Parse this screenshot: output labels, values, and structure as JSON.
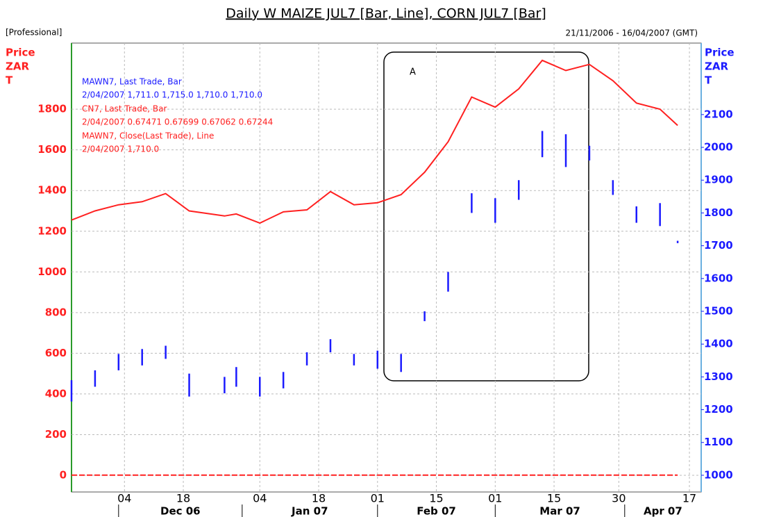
{
  "chart_data": {
    "type": "ohlc-line",
    "title": "Daily W MAIZE JUL7 [Bar, Line], CORN JUL7 [Bar]",
    "subtitle_left": "[Professional]",
    "subtitle_right": "21/11/2006 - 16/04/2007 (GMT)",
    "ylabel": [
      "Price",
      "ZAR",
      "T"
    ],
    "y2label": [
      "Price",
      "ZAR",
      "T"
    ],
    "annotation": "A",
    "x": [
      "2006-11-21",
      "2006-11-27",
      "2006-12-01",
      "2006-12-07",
      "2006-12-13",
      "2006-12-19",
      "2006-12-27",
      "2006-12-29",
      "2007-01-04",
      "2007-01-10",
      "2007-01-16",
      "2007-01-22",
      "2007-01-26",
      "2007-02-01",
      "2007-02-07",
      "2007-02-13",
      "2007-02-19",
      "2007-02-23",
      "2007-03-01",
      "2007-03-07",
      "2007-03-13",
      "2007-03-19",
      "2007-03-23",
      "2007-03-29",
      "2007-04-04",
      "2007-04-10",
      "2007-04-13"
    ],
    "xlim": [
      "2006-11-21",
      "2007-04-19"
    ],
    "xticks": [
      {
        "value": "2006-12-04",
        "label": "04"
      },
      {
        "value": "2006-12-18",
        "label": "18"
      },
      {
        "value": "2007-01-04",
        "label": "04"
      },
      {
        "value": "2007-01-18",
        "label": "18"
      },
      {
        "value": "2007-02-01",
        "label": "01"
      },
      {
        "value": "2007-02-15",
        "label": "15"
      },
      {
        "value": "2007-03-01",
        "label": "01"
      },
      {
        "value": "2007-03-15",
        "label": "15"
      },
      {
        "value": "2007-03-30",
        "label": "30"
      },
      {
        "value": "2007-04-17",
        "label": "17"
      }
    ],
    "xgroups": [
      {
        "value": "2006-12-01",
        "label": "Dec 06"
      },
      {
        "value": "2007-01-01",
        "label": "Jan 07"
      },
      {
        "value": "2007-02-01",
        "label": "Feb 07"
      },
      {
        "value": "2007-03-01",
        "label": "Mar 07"
      },
      {
        "value": "2007-04-02",
        "label": "Apr 07"
      }
    ],
    "ylim": [
      -82,
      2125
    ],
    "yticks": [
      0,
      200,
      400,
      600,
      800,
      1000,
      1200,
      1400,
      1600,
      1800
    ],
    "y2lim": [
      949,
      2318
    ],
    "y2ticks": [
      1000,
      1100,
      1200,
      1300,
      1400,
      1500,
      1600,
      1700,
      1800,
      1900,
      2000,
      2100
    ],
    "grid": true,
    "series": [
      {
        "name": "MAWN7, Last Trade, Bar",
        "detail": "2/04/2007 1,711.0 1,715.0 1,710.0 1,710.0",
        "color": "#1a1aff",
        "axis": "y2",
        "high": [
          1290,
          1320,
          1370,
          1385,
          1395,
          1310,
          1300,
          1330,
          1300,
          1315,
          1375,
          1415,
          1370,
          1380,
          1370,
          1500,
          1620,
          1860,
          1845,
          1900,
          2050,
          2040,
          2005,
          1900,
          1820,
          1830,
          1715
        ],
        "low": [
          1225,
          1270,
          1320,
          1335,
          1355,
          1240,
          1250,
          1270,
          1240,
          1265,
          1335,
          1375,
          1335,
          1325,
          1315,
          1470,
          1560,
          1800,
          1770,
          1840,
          1970,
          1940,
          1960,
          1855,
          1770,
          1760,
          1708
        ]
      },
      {
        "name": "CN7, Last Trade, Bar",
        "detail": "2/04/2007 0.67471 0.67699 0.67062 0.67244",
        "color": "#ff2020",
        "values": [
          0.67,
          0.67,
          0.67,
          0.67,
          0.67,
          0.67,
          0.67,
          0.67,
          0.67,
          0.67,
          0.67,
          0.67,
          0.67,
          0.67,
          0.67,
          0.67,
          0.67,
          0.67,
          0.67,
          0.67,
          0.67,
          0.67,
          0.67,
          0.67,
          0.67,
          0.67,
          0.67
        ]
      },
      {
        "name": "MAWN7, Close(Last Trade), Line",
        "detail": "2/04/2007 1,710.0",
        "color": "#ff2020",
        "values": [
          1255,
          1300,
          1330,
          1345,
          1385,
          1300,
          1275,
          1285,
          1240,
          1295,
          1305,
          1395,
          1330,
          1340,
          1380,
          1490,
          1640,
          1860,
          1810,
          1900,
          2040,
          1990,
          2020,
          1940,
          1830,
          1800,
          1720
        ]
      }
    ]
  }
}
